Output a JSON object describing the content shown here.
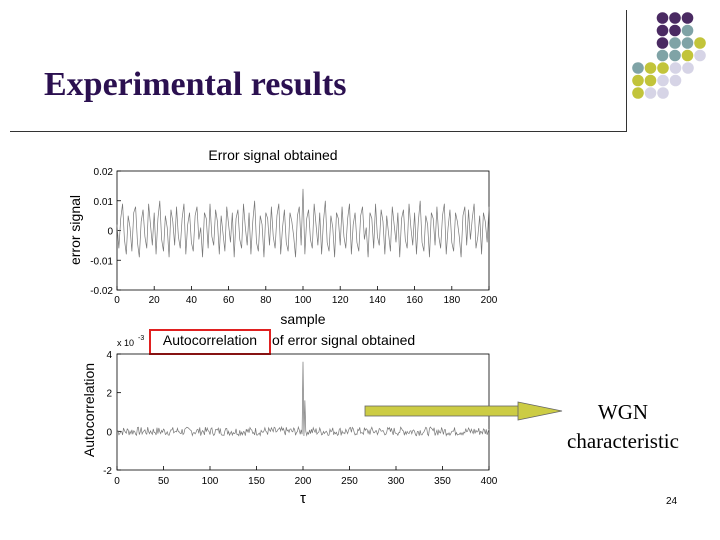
{
  "slide": {
    "title": "Experimental results",
    "wgn_label_line1": "WGN",
    "wgn_label_line2": "characteristic",
    "page_number": "24",
    "colors": {
      "purple": "#4a2a62",
      "teal": "#7fa3a6",
      "olive": "#c2c43a",
      "lavender": "#d6d4e6",
      "title": "#2b1050",
      "highlight_box": "#e02020",
      "arrow": "#cccc44"
    }
  },
  "chart_data": [
    {
      "type": "line",
      "title": "Error signal obtained",
      "xlabel": "sample",
      "ylabel": "error signal",
      "xlim": [
        0,
        200
      ],
      "ylim": [
        -0.02,
        0.02
      ],
      "xticks": [
        "0",
        "20",
        "40",
        "60",
        "80",
        "100",
        "120",
        "140",
        "160",
        "180",
        "200"
      ],
      "yticks": [
        "0.02",
        "0.01",
        "0",
        "-0.01",
        "-0.02"
      ],
      "grid": false,
      "description_of_series": "noise-like error signal, amplitude mostly within ±0.01",
      "y": [
        0.002,
        -0.006,
        0.004,
        0.009,
        -0.003,
        -0.008,
        0.005,
        0.001,
        -0.007,
        0.006,
        0.008,
        -0.004,
        -0.009,
        0.003,
        0.007,
        -0.002,
        -0.006,
        0.009,
        0.002,
        -0.005,
        0.006,
        -0.008,
        0.004,
        0.01,
        -0.003,
        -0.007,
        0.005,
        0.001,
        -0.009,
        0.007,
        0.003,
        -0.005,
        0.008,
        -0.002,
        -0.006,
        0.004,
        0.009,
        -0.008,
        0.002,
        0.006,
        -0.004,
        -0.007,
        0.005,
        0.008,
        -0.003,
        0.001,
        -0.009,
        0.006,
        0.004,
        -0.006,
        0.009,
        -0.002,
        -0.005,
        0.007,
        0.003,
        -0.008,
        0.005,
        -0.001,
        -0.007,
        0.008,
        0.002,
        -0.004,
        0.006,
        -0.009,
        0.004,
        0.007,
        -0.003,
        -0.006,
        0.009,
        0.001,
        -0.005,
        0.006,
        -0.008,
        0.003,
        0.01,
        -0.004,
        -0.007,
        0.005,
        0.002,
        -0.009,
        0.006,
        0.004,
        -0.005,
        0.008,
        -0.002,
        -0.006,
        0.005,
        0.009,
        -0.008,
        0.001,
        0.007,
        -0.004,
        -0.007,
        0.006,
        0.003,
        -0.002,
        -0.009,
        0.005,
        0.008,
        -0.005,
        0.014,
        -0.008,
        0.004,
        0.007,
        -0.003,
        -0.006,
        0.009,
        0.002,
        -0.005,
        0.006,
        -0.008,
        0.003,
        0.01,
        -0.004,
        -0.007,
        0.005,
        0.001,
        -0.009,
        0.006,
        0.004,
        -0.005,
        0.008,
        -0.002,
        -0.006,
        0.004,
        0.009,
        -0.008,
        0.002,
        0.006,
        -0.004,
        -0.007,
        0.005,
        0.008,
        -0.003,
        0.001,
        -0.009,
        0.006,
        0.004,
        -0.006,
        0.009,
        -0.002,
        -0.005,
        0.007,
        0.003,
        -0.008,
        0.005,
        -0.001,
        -0.007,
        0.008,
        0.002,
        -0.004,
        0.006,
        -0.009,
        0.004,
        0.007,
        -0.003,
        -0.006,
        0.009,
        0.001,
        -0.005,
        0.006,
        -0.008,
        0.003,
        0.01,
        -0.004,
        -0.007,
        0.005,
        0.002,
        -0.009,
        0.006,
        0.004,
        -0.005,
        0.008,
        -0.002,
        -0.006,
        0.005,
        0.009,
        -0.008,
        0.001,
        0.007,
        -0.004,
        -0.007,
        0.006,
        0.003,
        -0.002,
        -0.009,
        0.005,
        0.008,
        -0.005,
        0.007,
        -0.003,
        0.004,
        0.009,
        -0.006,
        -0.002,
        0.005,
        -0.008,
        0.006,
        0.003,
        -0.004,
        0.008
      ]
    },
    {
      "type": "line",
      "title_highlighted": "Autocorrelation",
      "title_rest": "of error signal obtained",
      "xlabel": "τ",
      "ylabel": "Autocorrelation",
      "xlim": [
        0,
        400
      ],
      "ylim": [
        -2,
        4
      ],
      "y_scale_label": "x 10",
      "y_scale_exp": "-3",
      "xticks": [
        "0",
        "50",
        "100",
        "150",
        "200",
        "250",
        "300",
        "350",
        "400"
      ],
      "yticks": [
        "4",
        "2",
        "0",
        "-2"
      ],
      "grid": false,
      "peak": {
        "x": 200,
        "y": 3.6
      },
      "description_of_series": "small fluctuations around 0 (about ±0.2e-3) with a single spike at lag 200"
    }
  ]
}
